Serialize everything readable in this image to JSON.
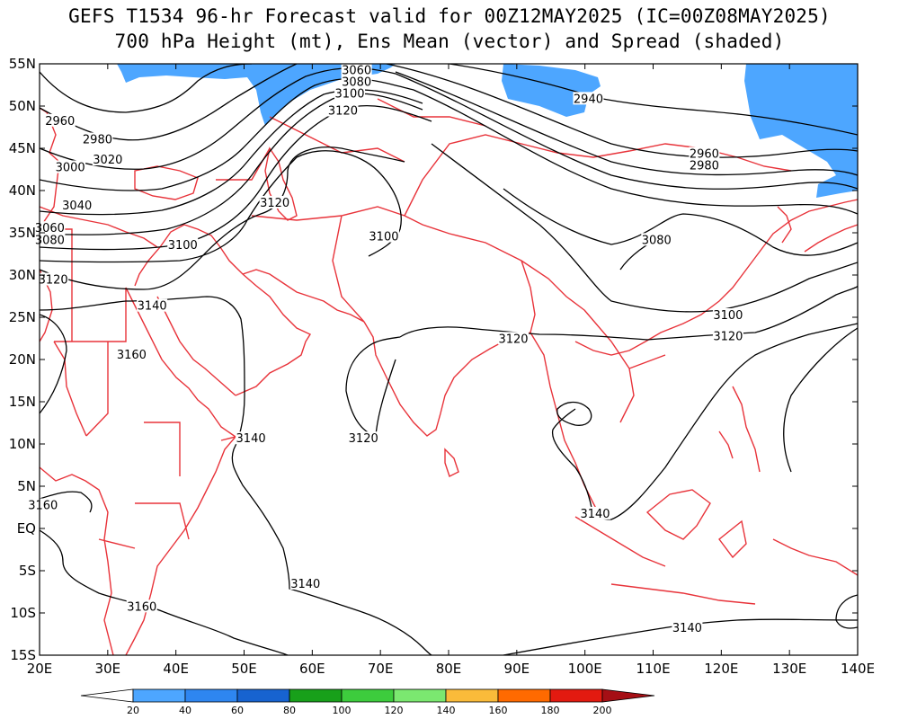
{
  "title": {
    "line1": "GEFS T1534 96-hr Forecast valid for 00Z12MAY2025 (IC=00Z08MAY2025)",
    "line2": "700 hPa Height (mt), Ens Mean (vector) and Spread (shaded)"
  },
  "axes": {
    "lon_labels": [
      "20E",
      "30E",
      "40E",
      "50E",
      "60E",
      "70E",
      "80E",
      "90E",
      "100E",
      "110E",
      "120E",
      "130E",
      "140E"
    ],
    "lat_labels": [
      "55N",
      "50N",
      "45N",
      "40N",
      "35N",
      "30N",
      "25N",
      "20N",
      "15N",
      "10N",
      "5N",
      "EQ",
      "5S",
      "10S",
      "15S"
    ],
    "lon_range": [
      20,
      140
    ],
    "lat_range": [
      -15,
      55
    ]
  },
  "colors": {
    "coastline": "#e8333a",
    "contour": "#000000",
    "spread_shade": "#4da6ff"
  },
  "contour_labels": [
    {
      "text": "3060",
      "lon": 66.5,
      "lat": 54.0
    },
    {
      "text": "3080",
      "lon": 66.5,
      "lat": 52.6
    },
    {
      "text": "3100",
      "lon": 65.5,
      "lat": 51.2
    },
    {
      "text": "3120",
      "lon": 64.5,
      "lat": 49.2
    },
    {
      "text": "2940",
      "lon": 100.5,
      "lat": 50.6
    },
    {
      "text": "2960",
      "lon": 23.0,
      "lat": 48.0
    },
    {
      "text": "2980",
      "lon": 28.5,
      "lat": 45.8
    },
    {
      "text": "3000",
      "lon": 24.5,
      "lat": 42.5
    },
    {
      "text": "3020",
      "lon": 30.0,
      "lat": 43.4
    },
    {
      "text": "3040",
      "lon": 25.5,
      "lat": 38.0
    },
    {
      "text": "3060",
      "lon": 21.5,
      "lat": 35.3
    },
    {
      "text": "3080",
      "lon": 21.5,
      "lat": 33.9
    },
    {
      "text": "3100",
      "lon": 41.0,
      "lat": 33.3
    },
    {
      "text": "3120",
      "lon": 54.5,
      "lat": 38.3
    },
    {
      "text": "3100",
      "lon": 70.5,
      "lat": 34.3
    },
    {
      "text": "3120",
      "lon": 22.0,
      "lat": 29.2
    },
    {
      "text": "3140",
      "lon": 36.5,
      "lat": 26.1
    },
    {
      "text": "3160",
      "lon": 33.5,
      "lat": 20.3
    },
    {
      "text": "3080",
      "lon": 110.5,
      "lat": 33.9
    },
    {
      "text": "2960",
      "lon": 117.5,
      "lat": 44.1
    },
    {
      "text": "2980",
      "lon": 117.5,
      "lat": 42.7
    },
    {
      "text": "3100",
      "lon": 121.0,
      "lat": 25.0
    },
    {
      "text": "3120",
      "lon": 121.0,
      "lat": 22.5
    },
    {
      "text": "3120",
      "lon": 89.5,
      "lat": 22.2
    },
    {
      "text": "3120",
      "lon": 67.5,
      "lat": 10.4
    },
    {
      "text": "3140",
      "lon": 51.0,
      "lat": 10.4
    },
    {
      "text": "3160",
      "lon": 20.5,
      "lat": 2.5
    },
    {
      "text": "3140",
      "lon": 101.5,
      "lat": 1.5
    },
    {
      "text": "3140",
      "lon": 59.0,
      "lat": -6.8
    },
    {
      "text": "3160",
      "lon": 35.0,
      "lat": -9.5
    },
    {
      "text": "3140",
      "lon": 115.0,
      "lat": -12.0
    }
  ],
  "colorbar": {
    "labels": [
      "20",
      "40",
      "60",
      "80",
      "100",
      "120",
      "140",
      "160",
      "180",
      "200"
    ],
    "colors": [
      "#ffffff",
      "#4da6ff",
      "#2e86f0",
      "#1763d0",
      "#18a01a",
      "#3dcc3d",
      "#7be870",
      "#fabb3a",
      "#ff6a00",
      "#e31a10",
      "#a50f15"
    ]
  }
}
